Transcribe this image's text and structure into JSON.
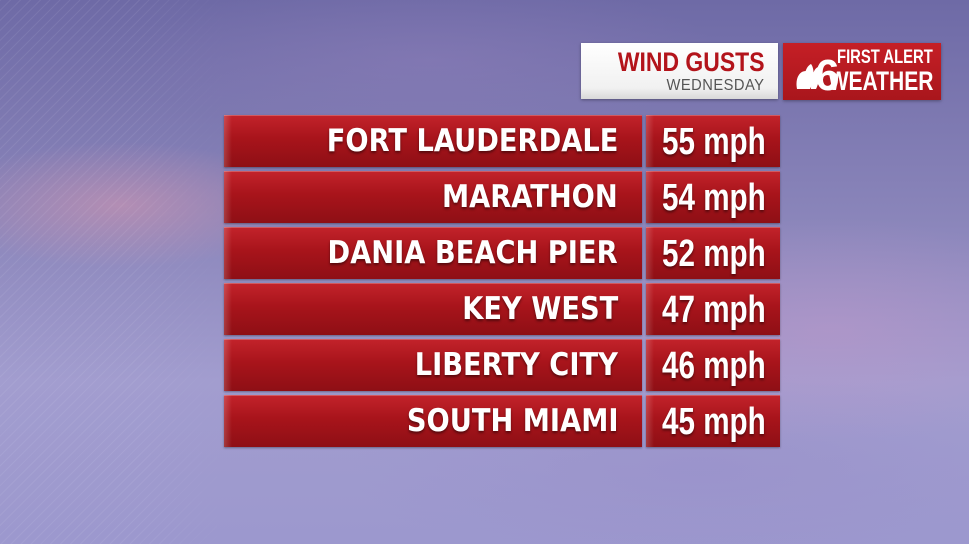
{
  "header": {
    "title": "WIND GUSTS",
    "subtitle": "WEDNESDAY"
  },
  "brand": {
    "channel_number": "6",
    "line1": "FIRST ALERT",
    "line2": "WEATHER",
    "logo_icon": "nbc-peacock-icon"
  },
  "gusts": [
    {
      "location": "FORT LAUDERDALE",
      "speed": "55 mph"
    },
    {
      "location": "MARATHON",
      "speed": "54 mph"
    },
    {
      "location": "DANIA BEACH PIER",
      "speed": "52 mph"
    },
    {
      "location": "KEY WEST",
      "speed": "47 mph"
    },
    {
      "location": "LIBERTY CITY",
      "speed": "46 mph"
    },
    {
      "location": "SOUTH MIAMI",
      "speed": "45 mph"
    }
  ],
  "colors": {
    "accent_red": "#b3141b",
    "header_bg": "#ffffff",
    "text": "#ffffff"
  }
}
